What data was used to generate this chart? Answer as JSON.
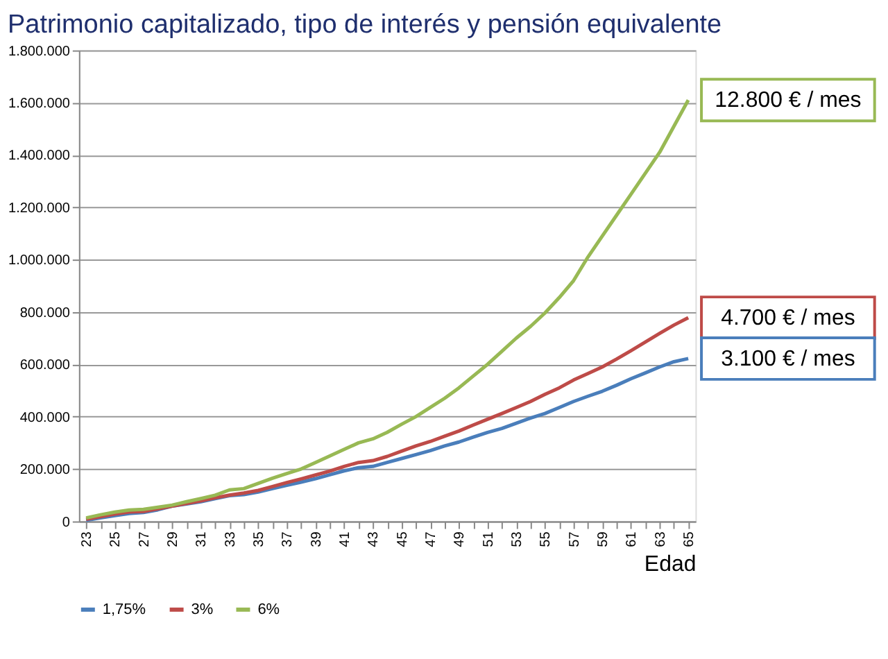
{
  "chart_data": {
    "type": "line",
    "title": "Patrimonio capitalizado, tipo de interés y pensión equivalente",
    "xlabel": "Edad",
    "categories": [
      "23",
      null,
      "25",
      null,
      "27",
      null,
      "29",
      null,
      "31",
      null,
      "33",
      null,
      "35",
      null,
      "37",
      null,
      "39",
      null,
      "41",
      null,
      "43",
      null,
      "45",
      null,
      "47",
      null,
      "49",
      null,
      "51",
      null,
      "53",
      null,
      "55",
      null,
      "57",
      null,
      "59",
      null,
      "61",
      null,
      "63",
      null,
      "65"
    ],
    "series": [
      {
        "name": "1,75%",
        "color": "#4a7ebb",
        "values": [
          4000,
          13000,
          22000,
          30000,
          34000,
          44000,
          58000,
          66000,
          75000,
          87000,
          98000,
          102000,
          112000,
          125000,
          138000,
          150000,
          163000,
          178000,
          193000,
          205000,
          210000,
          225000,
          240000,
          255000,
          270000,
          288000,
          303000,
          322000,
          340000,
          355000,
          375000,
          395000,
          412000,
          435000,
          458000,
          478000,
          497000,
          520000,
          545000,
          567000,
          590000,
          610000,
          622000
        ]
      },
      {
        "name": "3%",
        "color": "#be4b48",
        "values": [
          8000,
          18000,
          28000,
          36000,
          38000,
          48000,
          58000,
          68000,
          78000,
          90000,
          100000,
          108000,
          118000,
          133000,
          148000,
          162000,
          177000,
          192000,
          210000,
          225000,
          232000,
          248000,
          268000,
          288000,
          305000,
          325000,
          345000,
          368000,
          390000,
          412000,
          435000,
          458000,
          485000,
          510000,
          540000,
          565000,
          590000,
          620000,
          652000,
          685000,
          718000,
          750000,
          778000
        ]
      },
      {
        "name": "6%",
        "color": "#98b954",
        "values": [
          13000,
          25000,
          35000,
          43000,
          46000,
          54000,
          62000,
          75000,
          87000,
          100000,
          120000,
          125000,
          145000,
          165000,
          183000,
          200000,
          225000,
          250000,
          275000,
          300000,
          315000,
          340000,
          371000,
          400000,
          435000,
          470000,
          510000,
          555000,
          600000,
          650000,
          700000,
          745000,
          796000,
          855000,
          920000,
          1010000,
          1090000,
          1170000,
          1250000,
          1330000,
          1410000,
          1510000,
          1610000
        ]
      }
    ],
    "ylim": [
      0,
      1800000
    ],
    "yticks": [
      {
        "value": 0,
        "label": "0"
      },
      {
        "value": 200000,
        "label": "200.000"
      },
      {
        "value": 400000,
        "label": "400.000"
      },
      {
        "value": 600000,
        "label": "600.000"
      },
      {
        "value": 800000,
        "label": "800.000"
      },
      {
        "value": 1000000,
        "label": "1.000.000"
      },
      {
        "value": 1200000,
        "label": "1.200.000"
      },
      {
        "value": 1400000,
        "label": "1.400.000"
      },
      {
        "value": 1600000,
        "label": "1.600.000"
      },
      {
        "value": 1800000,
        "label": "1.800.000"
      }
    ],
    "annotations": [
      {
        "text": "12.800 € / mes",
        "x": "65",
        "y": 1610000
      },
      {
        "text": "4.700 € / mes",
        "x": "65",
        "y": 778000
      },
      {
        "text": "3.100 € / mes",
        "x": "65",
        "y": 622000
      }
    ],
    "grid": "y",
    "legend": "bottom",
    "marker": "none",
    "line_style": "solid"
  }
}
